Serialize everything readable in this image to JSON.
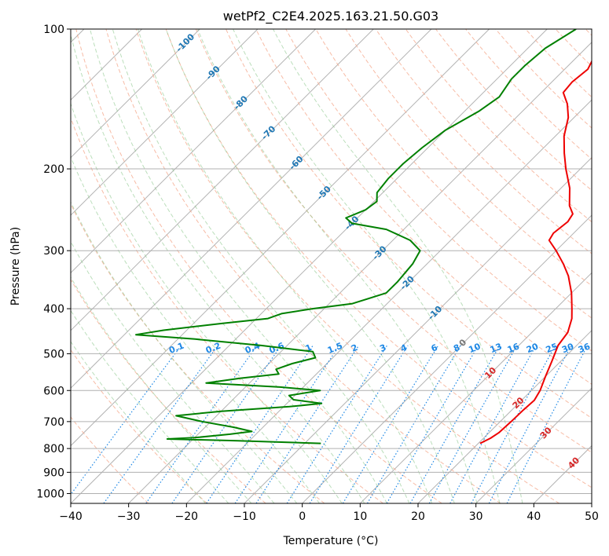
{
  "chart_data": {
    "type": "line",
    "title": "wetPf2_C2E4.2025.163.21.50.G03",
    "xlabel": "Temperature (°C)",
    "ylabel": "Pressure (hPa)",
    "xlim": [
      -40,
      50
    ],
    "ylim": [
      1050,
      100
    ],
    "y_scale": "log",
    "x_ticks": [
      -40,
      -30,
      -20,
      -10,
      0,
      10,
      20,
      30,
      40,
      50
    ],
    "y_ticks": [
      100,
      200,
      300,
      400,
      500,
      600,
      700,
      800,
      900,
      1000
    ],
    "grid": true,
    "skew": 35,
    "isotherm_labels": [
      "-100",
      "-90",
      "-80",
      "-70",
      "-60",
      "-50",
      "-40",
      "-30",
      "-20",
      "-10",
      "0",
      "10",
      "20",
      "30",
      "40"
    ],
    "mixing_ratio_labels": [
      "0.1",
      "0.2",
      "0.4",
      "0.6",
      "1",
      "1.5",
      "2",
      "3",
      "4",
      "6",
      "8",
      "10",
      "13",
      "16",
      "20",
      "25",
      "30",
      "36"
    ],
    "series": [
      {
        "role": "temperature",
        "color": "#ee0000",
        "points": [
          {
            "p": 780,
            "t": 20.3
          },
          {
            "p": 760,
            "t": 21.2
          },
          {
            "p": 740,
            "t": 21.7
          },
          {
            "p": 700,
            "t": 21.9
          },
          {
            "p": 660,
            "t": 22.0
          },
          {
            "p": 630,
            "t": 22.2
          },
          {
            "p": 600,
            "t": 21.5
          },
          {
            "p": 560,
            "t": 20.0
          },
          {
            "p": 520,
            "t": 18.5
          },
          {
            "p": 480,
            "t": 16.8
          },
          {
            "p": 450,
            "t": 16.2
          },
          {
            "p": 420,
            "t": 14.5
          },
          {
            "p": 400,
            "t": 12.8
          },
          {
            "p": 370,
            "t": 10.0
          },
          {
            "p": 340,
            "t": 6.5
          },
          {
            "p": 320,
            "t": 3.5
          },
          {
            "p": 300,
            "t": 0.0
          },
          {
            "p": 285,
            "t": -3.0
          },
          {
            "p": 275,
            "t": -3.5
          },
          {
            "p": 260,
            "t": -3.0
          },
          {
            "p": 250,
            "t": -3.5
          },
          {
            "p": 240,
            "t": -5.5
          },
          {
            "p": 220,
            "t": -8.5
          },
          {
            "p": 200,
            "t": -12.5
          },
          {
            "p": 185,
            "t": -15.5
          },
          {
            "p": 170,
            "t": -18.5
          },
          {
            "p": 155,
            "t": -21.0
          },
          {
            "p": 145,
            "t": -23.5
          },
          {
            "p": 137,
            "t": -26.2
          },
          {
            "p": 130,
            "t": -26.5
          },
          {
            "p": 122,
            "t": -26.0
          },
          {
            "p": 112,
            "t": -27.5
          },
          {
            "p": 106,
            "t": -28.8
          },
          {
            "p": 100,
            "t": -30.5
          }
        ]
      },
      {
        "role": "dewpoint",
        "color": "#008000",
        "points": [
          {
            "p": 780,
            "t": -7.2
          },
          {
            "p": 770,
            "t": -22.0
          },
          {
            "p": 763,
            "t": -34.5
          },
          {
            "p": 758,
            "t": -30.0
          },
          {
            "p": 745,
            "t": -24.5
          },
          {
            "p": 735,
            "t": -21.2
          },
          {
            "p": 720,
            "t": -25.0
          },
          {
            "p": 700,
            "t": -31.5
          },
          {
            "p": 680,
            "t": -37.0
          },
          {
            "p": 665,
            "t": -30.0
          },
          {
            "p": 650,
            "t": -19.0
          },
          {
            "p": 640,
            "t": -14.0
          },
          {
            "p": 628,
            "t": -19.5
          },
          {
            "p": 615,
            "t": -21.0
          },
          {
            "p": 600,
            "t": -16.5
          },
          {
            "p": 590,
            "t": -24.0
          },
          {
            "p": 578,
            "t": -37.5
          },
          {
            "p": 565,
            "t": -32.5
          },
          {
            "p": 553,
            "t": -26.5
          },
          {
            "p": 540,
            "t": -27.8
          },
          {
            "p": 525,
            "t": -26.0
          },
          {
            "p": 510,
            "t": -23.0
          },
          {
            "p": 495,
            "t": -24.5
          },
          {
            "p": 480,
            "t": -34.5
          },
          {
            "p": 465,
            "t": -47.0
          },
          {
            "p": 455,
            "t": -58.0
          },
          {
            "p": 445,
            "t": -54.0
          },
          {
            "p": 430,
            "t": -45.0
          },
          {
            "p": 420,
            "t": -38.0
          },
          {
            "p": 410,
            "t": -36.5
          },
          {
            "p": 400,
            "t": -32.0
          },
          {
            "p": 390,
            "t": -26.0
          },
          {
            "p": 370,
            "t": -22.0
          },
          {
            "p": 350,
            "t": -22.0
          },
          {
            "p": 320,
            "t": -22.5
          },
          {
            "p": 300,
            "t": -23.5
          },
          {
            "p": 285,
            "t": -27.0
          },
          {
            "p": 270,
            "t": -33.0
          },
          {
            "p": 262,
            "t": -40.0
          },
          {
            "p": 255,
            "t": -42.0
          },
          {
            "p": 245,
            "t": -40.0
          },
          {
            "p": 235,
            "t": -39.5
          },
          {
            "p": 225,
            "t": -41.0
          },
          {
            "p": 210,
            "t": -41.5
          },
          {
            "p": 195,
            "t": -41.5
          },
          {
            "p": 180,
            "t": -41.0
          },
          {
            "p": 165,
            "t": -40.0
          },
          {
            "p": 150,
            "t": -37.5
          },
          {
            "p": 140,
            "t": -36.5
          },
          {
            "p": 128,
            "t": -37.5
          },
          {
            "p": 120,
            "t": -37.5
          },
          {
            "p": 110,
            "t": -37.0
          },
          {
            "p": 100,
            "t": -35.0
          }
        ]
      }
    ]
  }
}
